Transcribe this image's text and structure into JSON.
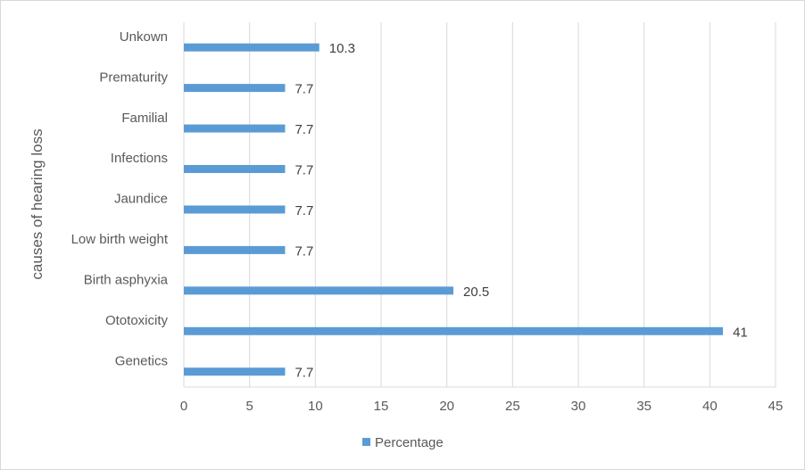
{
  "chart_data": {
    "type": "bar",
    "orientation": "horizontal",
    "categories": [
      "Genetics",
      "Ototoxicity",
      "Birth asphyxia",
      "Low birth weight",
      "Jaundice",
      "Infections",
      "Familial",
      "Prematurity",
      "Unkown"
    ],
    "series": [
      {
        "name": "Percentage",
        "values": [
          7.7,
          41,
          20.5,
          7.7,
          7.7,
          7.7,
          7.7,
          7.7,
          10.3
        ],
        "labels": [
          "7.7",
          "41",
          "20.5",
          "7.7",
          "7.7",
          "7.7",
          "7.7",
          "7.7",
          "10.3"
        ],
        "color": "#5b9bd5"
      }
    ],
    "title": "",
    "xlabel": "",
    "ylabel": "causes of hearing loss",
    "xlim": [
      0,
      45
    ],
    "xticks": [
      0,
      5,
      10,
      15,
      20,
      25,
      30,
      35,
      40,
      45
    ],
    "grid": "vertical",
    "legend": "bottom",
    "colors": {
      "gridline": "#d9d9d9",
      "text": "#595959"
    }
  }
}
